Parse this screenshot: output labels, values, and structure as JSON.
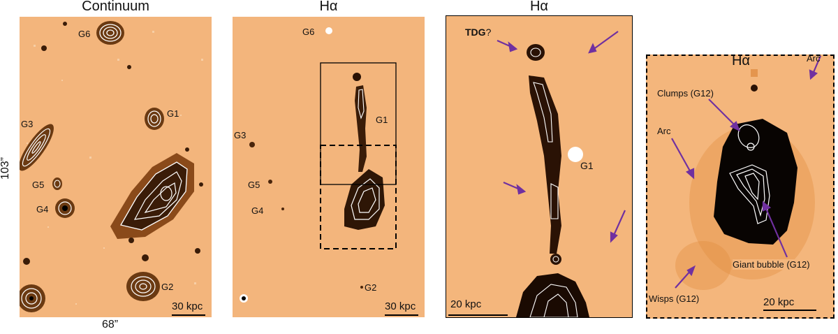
{
  "panels": {
    "continuum": {
      "title": "Continuum",
      "axis_x": "68”",
      "axis_y": "103”",
      "scale": "30 kpc",
      "labels": {
        "g6": "G6",
        "g1": "G1",
        "g3": "G3",
        "g5": "G5",
        "g4": "G4",
        "g2": "G2"
      }
    },
    "halpha_wide": {
      "title": "Hα",
      "scale": "30 kpc",
      "labels": {
        "g6": "G6",
        "g1": "G1",
        "g3": "G3",
        "g5": "G5",
        "g4": "G4",
        "g2": "G2"
      }
    },
    "halpha_zoom": {
      "title": "Hα",
      "scale": "20 kpc",
      "tdg_bold": "TDG",
      "tdg_q": "?",
      "g1": "G1"
    },
    "halpha_g12": {
      "title": "Hα",
      "scale": "20 kpc",
      "labels": {
        "arc_top": "Arc",
        "clumps": "Clumps (G12)",
        "arc_left": "Arc",
        "bubble": "Giant bubble (G12)",
        "wisps": "Wisps (G12)"
      }
    }
  },
  "colors": {
    "background": "#f2b47a",
    "arrow": "#7030a0",
    "contour": "#ffffff",
    "dark": "#000000"
  }
}
